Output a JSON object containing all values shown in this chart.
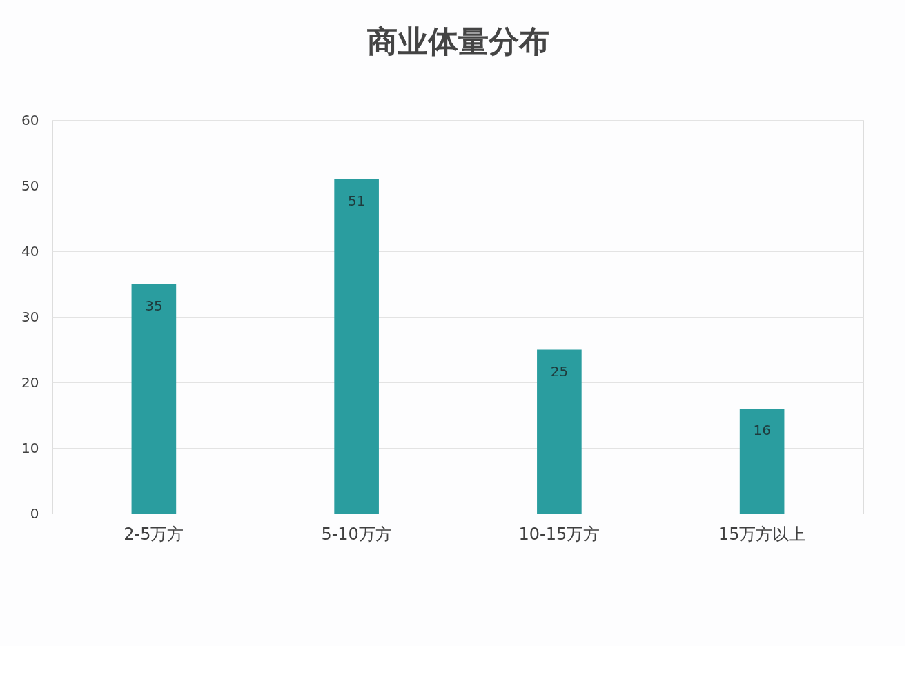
{
  "chart_data": {
    "type": "bar",
    "title": "商业体量分布",
    "categories": [
      "2-5万方",
      "5-10万方",
      "10-15万方",
      "15万方以上"
    ],
    "series": [
      {
        "color": "#2a9d9f",
        "values": [
          35,
          51,
          25,
          16
        ]
      }
    ],
    "ylim": [
      0,
      60
    ],
    "yticks": [
      0,
      10,
      20,
      30,
      40,
      50,
      60
    ],
    "grid": "y",
    "data_labels": true
  }
}
